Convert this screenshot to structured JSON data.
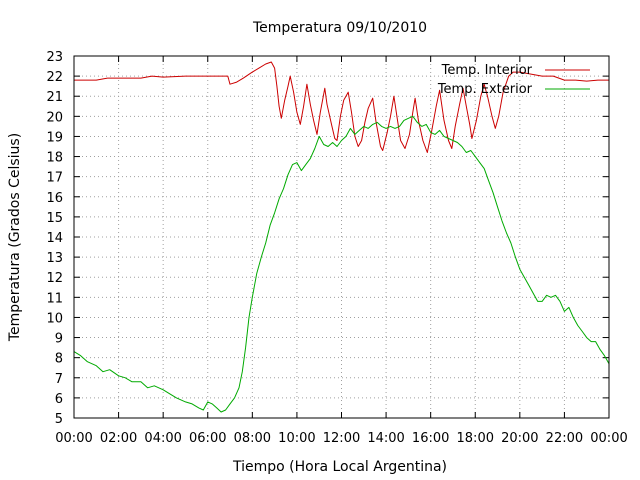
{
  "chart_data": {
    "type": "line",
    "title": "Temperatura 09/10/2010",
    "xlabel": "Tiempo (Hora Local Argentina)",
    "ylabel": "Temperatura (Grados Celsius)",
    "xlim": [
      0,
      24
    ],
    "ylim": [
      5,
      23
    ],
    "x_ticks": [
      {
        "value": 0,
        "label": "00:00"
      },
      {
        "value": 2,
        "label": "02:00"
      },
      {
        "value": 4,
        "label": "04:00"
      },
      {
        "value": 6,
        "label": "06:00"
      },
      {
        "value": 8,
        "label": "08:00"
      },
      {
        "value": 10,
        "label": "10:00"
      },
      {
        "value": 12,
        "label": "12:00"
      },
      {
        "value": 14,
        "label": "14:00"
      },
      {
        "value": 16,
        "label": "16:00"
      },
      {
        "value": 18,
        "label": "18:00"
      },
      {
        "value": 20,
        "label": "20:00"
      },
      {
        "value": 22,
        "label": "22:00"
      },
      {
        "value": 24,
        "label": "00:00"
      }
    ],
    "y_ticks": [
      5,
      6,
      7,
      8,
      9,
      10,
      11,
      12,
      13,
      14,
      15,
      16,
      17,
      18,
      19,
      20,
      21,
      22,
      23
    ],
    "grid": true,
    "legend": "top-right",
    "series": [
      {
        "name": "Temp. Interior",
        "color": "#cc0000",
        "points": [
          [
            0,
            21.8
          ],
          [
            1,
            21.8
          ],
          [
            1.5,
            21.9
          ],
          [
            2,
            21.9
          ],
          [
            3,
            21.9
          ],
          [
            3.5,
            22
          ],
          [
            4,
            21.95
          ],
          [
            5,
            22
          ],
          [
            6,
            22
          ],
          [
            6.5,
            22
          ],
          [
            6.9,
            22
          ],
          [
            7,
            21.6
          ],
          [
            7.3,
            21.7
          ],
          [
            7.6,
            21.9
          ],
          [
            8,
            22.2
          ],
          [
            8.3,
            22.4
          ],
          [
            8.6,
            22.6
          ],
          [
            8.85,
            22.7
          ],
          [
            9.0,
            22.4
          ],
          [
            9.1,
            21.5
          ],
          [
            9.2,
            20.5
          ],
          [
            9.3,
            19.9
          ],
          [
            9.45,
            20.8
          ],
          [
            9.6,
            21.5
          ],
          [
            9.7,
            22.0
          ],
          [
            9.85,
            21.2
          ],
          [
            10.0,
            20.2
          ],
          [
            10.15,
            19.6
          ],
          [
            10.3,
            20.5
          ],
          [
            10.45,
            21.6
          ],
          [
            10.6,
            20.6
          ],
          [
            10.75,
            19.8
          ],
          [
            10.9,
            19.1
          ],
          [
            11.05,
            20.2
          ],
          [
            11.25,
            21.4
          ],
          [
            11.35,
            20.6
          ],
          [
            11.55,
            19.6
          ],
          [
            11.7,
            18.9
          ],
          [
            11.8,
            18.8
          ],
          [
            11.95,
            20.0
          ],
          [
            12.1,
            20.8
          ],
          [
            12.3,
            21.2
          ],
          [
            12.45,
            20.2
          ],
          [
            12.6,
            19.0
          ],
          [
            12.75,
            18.5
          ],
          [
            12.9,
            18.8
          ],
          [
            13.05,
            19.7
          ],
          [
            13.2,
            20.4
          ],
          [
            13.4,
            20.9
          ],
          [
            13.55,
            19.7
          ],
          [
            13.75,
            18.5
          ],
          [
            13.85,
            18.3
          ],
          [
            14.05,
            19.2
          ],
          [
            14.2,
            20.0
          ],
          [
            14.35,
            21.0
          ],
          [
            14.5,
            19.9
          ],
          [
            14.65,
            18.8
          ],
          [
            14.85,
            18.4
          ],
          [
            15.05,
            19.1
          ],
          [
            15.2,
            20.2
          ],
          [
            15.3,
            20.9
          ],
          [
            15.45,
            19.8
          ],
          [
            15.65,
            18.8
          ],
          [
            15.85,
            18.2
          ],
          [
            16.05,
            19.3
          ],
          [
            16.25,
            20.5
          ],
          [
            16.4,
            21.3
          ],
          [
            16.6,
            19.8
          ],
          [
            16.8,
            18.8
          ],
          [
            16.95,
            18.4
          ],
          [
            17.1,
            19.5
          ],
          [
            17.3,
            20.6
          ],
          [
            17.45,
            21.4
          ],
          [
            17.6,
            20.5
          ],
          [
            17.75,
            19.6
          ],
          [
            17.85,
            18.9
          ],
          [
            18.05,
            19.8
          ],
          [
            18.25,
            21.0
          ],
          [
            18.4,
            21.6
          ],
          [
            18.55,
            21.0
          ],
          [
            18.75,
            20.0
          ],
          [
            18.9,
            19.4
          ],
          [
            19.05,
            20.0
          ],
          [
            19.25,
            21.2
          ],
          [
            19.5,
            22.0
          ],
          [
            19.7,
            22.2
          ],
          [
            20.0,
            22.2
          ],
          [
            20.5,
            22.1
          ],
          [
            21.0,
            22.0
          ],
          [
            21.5,
            22.0
          ],
          [
            22.0,
            21.8
          ],
          [
            22.5,
            21.8
          ],
          [
            23.0,
            21.75
          ],
          [
            23.5,
            21.8
          ],
          [
            24,
            21.8
          ]
        ]
      },
      {
        "name": "Temp. Exterior",
        "color": "#00aa00",
        "points": [
          [
            0,
            8.3
          ],
          [
            0.3,
            8.1
          ],
          [
            0.6,
            7.8
          ],
          [
            1,
            7.6
          ],
          [
            1.3,
            7.3
          ],
          [
            1.6,
            7.4
          ],
          [
            2,
            7.1
          ],
          [
            2.3,
            7.0
          ],
          [
            2.6,
            6.8
          ],
          [
            3,
            6.8
          ],
          [
            3.3,
            6.5
          ],
          [
            3.6,
            6.6
          ],
          [
            4,
            6.4
          ],
          [
            4.3,
            6.2
          ],
          [
            4.6,
            6.0
          ],
          [
            5,
            5.8
          ],
          [
            5.3,
            5.7
          ],
          [
            5.6,
            5.5
          ],
          [
            5.8,
            5.4
          ],
          [
            6,
            5.8
          ],
          [
            6.2,
            5.7
          ],
          [
            6.4,
            5.5
          ],
          [
            6.6,
            5.3
          ],
          [
            6.8,
            5.4
          ],
          [
            7.0,
            5.7
          ],
          [
            7.2,
            6.0
          ],
          [
            7.4,
            6.5
          ],
          [
            7.55,
            7.3
          ],
          [
            7.7,
            8.5
          ],
          [
            7.85,
            10.0
          ],
          [
            8.0,
            11.0
          ],
          [
            8.2,
            12.2
          ],
          [
            8.4,
            13.0
          ],
          [
            8.6,
            13.7
          ],
          [
            8.8,
            14.6
          ],
          [
            9.0,
            15.2
          ],
          [
            9.2,
            15.9
          ],
          [
            9.4,
            16.4
          ],
          [
            9.6,
            17.1
          ],
          [
            9.8,
            17.6
          ],
          [
            10.0,
            17.7
          ],
          [
            10.2,
            17.3
          ],
          [
            10.4,
            17.6
          ],
          [
            10.6,
            17.9
          ],
          [
            10.8,
            18.4
          ],
          [
            11.0,
            19.0
          ],
          [
            11.2,
            18.6
          ],
          [
            11.4,
            18.5
          ],
          [
            11.6,
            18.7
          ],
          [
            11.8,
            18.5
          ],
          [
            12.0,
            18.8
          ],
          [
            12.2,
            19.0
          ],
          [
            12.4,
            19.4
          ],
          [
            12.6,
            19.1
          ],
          [
            12.8,
            19.3
          ],
          [
            13.0,
            19.5
          ],
          [
            13.2,
            19.4
          ],
          [
            13.4,
            19.6
          ],
          [
            13.6,
            19.7
          ],
          [
            13.8,
            19.5
          ],
          [
            14.0,
            19.4
          ],
          [
            14.2,
            19.5
          ],
          [
            14.4,
            19.4
          ],
          [
            14.6,
            19.5
          ],
          [
            14.8,
            19.8
          ],
          [
            15.0,
            19.9
          ],
          [
            15.2,
            20.0
          ],
          [
            15.4,
            19.7
          ],
          [
            15.6,
            19.5
          ],
          [
            15.8,
            19.6
          ],
          [
            16.0,
            19.2
          ],
          [
            16.2,
            19.1
          ],
          [
            16.4,
            19.3
          ],
          [
            16.6,
            19.0
          ],
          [
            16.8,
            18.9
          ],
          [
            17.0,
            18.8
          ],
          [
            17.2,
            18.7
          ],
          [
            17.4,
            18.5
          ],
          [
            17.6,
            18.2
          ],
          [
            17.8,
            18.3
          ],
          [
            18.0,
            18.0
          ],
          [
            18.2,
            17.7
          ],
          [
            18.4,
            17.4
          ],
          [
            18.6,
            16.8
          ],
          [
            18.8,
            16.2
          ],
          [
            19.0,
            15.5
          ],
          [
            19.2,
            14.8
          ],
          [
            19.4,
            14.2
          ],
          [
            19.6,
            13.7
          ],
          [
            19.8,
            13.0
          ],
          [
            20.0,
            12.4
          ],
          [
            20.2,
            12.0
          ],
          [
            20.4,
            11.6
          ],
          [
            20.6,
            11.2
          ],
          [
            20.8,
            10.8
          ],
          [
            21.0,
            10.8
          ],
          [
            21.2,
            11.1
          ],
          [
            21.4,
            11.0
          ],
          [
            21.6,
            11.1
          ],
          [
            21.8,
            10.8
          ],
          [
            22.0,
            10.3
          ],
          [
            22.2,
            10.5
          ],
          [
            22.4,
            10.0
          ],
          [
            22.6,
            9.6
          ],
          [
            22.8,
            9.3
          ],
          [
            23.0,
            9.0
          ],
          [
            23.2,
            8.8
          ],
          [
            23.4,
            8.8
          ],
          [
            23.6,
            8.4
          ],
          [
            23.8,
            8.1
          ],
          [
            24,
            7.7
          ]
        ]
      }
    ]
  }
}
